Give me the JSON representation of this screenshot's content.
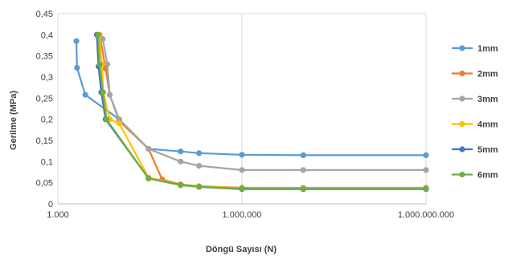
{
  "chart_data": {
    "type": "line",
    "xscale": "log",
    "xlim": [
      1000,
      1000000000
    ],
    "ylim": [
      0,
      0.45
    ],
    "xlabel": "Döngü Sayısı (N)",
    "ylabel": "Gerilme  (MPa)",
    "grid": "vertical",
    "legend_position": "right",
    "x_ticks": [
      {
        "value": 1000,
        "label": "1.000"
      },
      {
        "value": 1000000,
        "label": "1.000.000"
      },
      {
        "value": 1000000000,
        "label": "1.000.000.000"
      }
    ],
    "y_ticks": [
      {
        "value": 0,
        "label": "0"
      },
      {
        "value": 0.05,
        "label": "0,05"
      },
      {
        "value": 0.1,
        "label": "0,1"
      },
      {
        "value": 0.15,
        "label": "0,15"
      },
      {
        "value": 0.2,
        "label": "0,2"
      },
      {
        "value": 0.25,
        "label": "0,25"
      },
      {
        "value": 0.3,
        "label": "0,3"
      },
      {
        "value": 0.35,
        "label": "0,35"
      },
      {
        "value": 0.4,
        "label": "0,4"
      },
      {
        "value": 0.45,
        "label": "0,45"
      }
    ],
    "series": [
      {
        "name": "1mm",
        "color": "#5B9BD5",
        "points": [
          [
            2000,
            0.385
          ],
          [
            2050,
            0.322
          ],
          [
            2800,
            0.258
          ],
          [
            10000,
            0.2
          ],
          [
            30000,
            0.13
          ],
          [
            100000,
            0.124
          ],
          [
            200000,
            0.12
          ],
          [
            1000000,
            0.116
          ],
          [
            10000000,
            0.115
          ],
          [
            1000000000,
            0.115
          ]
        ]
      },
      {
        "name": "2mm",
        "color": "#ED7D31",
        "points": [
          [
            4800,
            0.4
          ],
          [
            6000,
            0.32
          ],
          [
            7000,
            0.258
          ],
          [
            10000,
            0.196
          ],
          [
            30000,
            0.13
          ],
          [
            50000,
            0.058
          ],
          [
            100000,
            0.046
          ],
          [
            200000,
            0.042
          ],
          [
            1000000,
            0.038
          ],
          [
            10000000,
            0.038
          ],
          [
            1000000000,
            0.038
          ]
        ]
      },
      {
        "name": "3mm",
        "color": "#A5A5A5",
        "points": [
          [
            5400,
            0.39
          ],
          [
            6400,
            0.33
          ],
          [
            7000,
            0.258
          ],
          [
            10000,
            0.2
          ],
          [
            30000,
            0.13
          ],
          [
            100000,
            0.1
          ],
          [
            200000,
            0.09
          ],
          [
            1000000,
            0.08
          ],
          [
            10000000,
            0.08
          ],
          [
            1000000000,
            0.08
          ]
        ]
      },
      {
        "name": "4mm",
        "color": "#FFC000",
        "points": [
          [
            4700,
            0.4
          ],
          [
            5200,
            0.33
          ],
          [
            5500,
            0.264
          ],
          [
            7000,
            0.2
          ],
          [
            10000,
            0.19
          ],
          [
            30000,
            0.062
          ],
          [
            100000,
            0.046
          ],
          [
            200000,
            0.042
          ],
          [
            1000000,
            0.037
          ],
          [
            10000000,
            0.037
          ],
          [
            1000000000,
            0.037
          ]
        ]
      },
      {
        "name": "5mm",
        "color": "#4472C4",
        "points": [
          [
            4300,
            0.4
          ],
          [
            4600,
            0.325
          ],
          [
            5100,
            0.264
          ],
          [
            6000,
            0.2
          ],
          [
            30000,
            0.06
          ],
          [
            100000,
            0.045
          ],
          [
            200000,
            0.04
          ],
          [
            1000000,
            0.035
          ],
          [
            10000000,
            0.035
          ],
          [
            1000000000,
            0.035
          ]
        ]
      },
      {
        "name": "6mm",
        "color": "#70AD47",
        "points": [
          [
            4500,
            0.4
          ],
          [
            4800,
            0.33
          ],
          [
            5400,
            0.264
          ],
          [
            6200,
            0.2
          ],
          [
            30000,
            0.06
          ],
          [
            100000,
            0.044
          ],
          [
            200000,
            0.04
          ],
          [
            1000000,
            0.036
          ],
          [
            10000000,
            0.036
          ],
          [
            1000000000,
            0.036
          ]
        ]
      }
    ]
  }
}
